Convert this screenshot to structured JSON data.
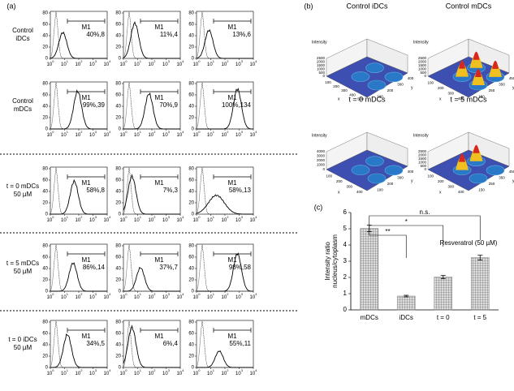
{
  "panel_a": {
    "label": "(a)",
    "gate_label": "M1",
    "x_tick_base": "10",
    "x_tick_exponents": [
      0,
      1,
      2,
      3,
      4
    ],
    "y_ticks": [
      0,
      20,
      40,
      60,
      80
    ],
    "rows": [
      {
        "label_lines": [
          "Control",
          "iDCs"
        ],
        "gates": [
          "40%,8",
          "11%,4",
          "13%,6"
        ]
      },
      {
        "label_lines": [
          "Control",
          "mDCs"
        ],
        "gates": [
          "99%,39",
          "70%,9",
          "100%,134"
        ]
      },
      {
        "label_lines": [
          "t = 0 mDCs",
          "50 µM"
        ],
        "gates": [
          "58%,8",
          "7%,3",
          "58%,13"
        ]
      },
      {
        "label_lines": [
          "t = 5 mDCs",
          "50 µM"
        ],
        "gates": [
          "86%,14",
          "37%,7",
          "98%,58"
        ]
      },
      {
        "label_lines": [
          "t = 0 iDCs",
          "50 µM"
        ],
        "gates": [
          "34%,5",
          "6%,4",
          "55%,11"
        ]
      }
    ]
  },
  "panel_b": {
    "label": "(b)",
    "plots": [
      {
        "title": "Control iDCs",
        "z_label": "Intensity",
        "x_label": "x",
        "y_label": "y",
        "z_ticks": [
          0,
          500,
          1000,
          1500,
          2000,
          2500
        ],
        "x_ticks": [
          100,
          200,
          300,
          400,
          500
        ],
        "y_ticks": [
          100,
          200,
          300,
          400
        ]
      },
      {
        "title": "Control mDCs",
        "z_label": "Intensity",
        "x_label": "x",
        "y_label": "y",
        "z_ticks": [
          0,
          500,
          1000,
          1500,
          2000,
          2500
        ],
        "x_ticks": [
          100,
          200,
          300,
          400
        ],
        "y_ticks": [
          150,
          250,
          350,
          450
        ]
      },
      {
        "title": "t = 0 mDCs",
        "z_label": "Intensity",
        "x_label": "x",
        "y_label": "y",
        "z_ticks": [
          0,
          1000,
          2000,
          3000,
          4000
        ],
        "x_ticks": [
          100,
          200,
          300,
          400
        ],
        "y_ticks": [
          100,
          200,
          300,
          400
        ]
      },
      {
        "title": "t = 5 mDCs",
        "z_label": "Intensity",
        "x_label": "x",
        "y_label": "y",
        "z_ticks": [
          0,
          500,
          1000,
          1500,
          2000,
          2500
        ],
        "x_ticks": [
          100,
          200,
          300,
          400
        ],
        "y_ticks": [
          150,
          250,
          350,
          450
        ]
      }
    ]
  },
  "chart_data": {
    "type": "bar",
    "label": "(c)",
    "ylabel": [
      "Intensity ratio",
      "nucleus/cytoplasm"
    ],
    "categories": [
      "mDCs",
      "iDCs",
      "t = 0",
      "t = 5"
    ],
    "values": [
      5.02,
      0.85,
      2.02,
      3.22
    ],
    "errors": [
      0.2,
      0.05,
      0.1,
      0.15
    ],
    "ylim": [
      0,
      6
    ],
    "yticks": [
      0,
      1,
      2,
      3,
      4,
      5,
      6
    ],
    "color": "#888888",
    "annotations": [
      "n.s.",
      "*",
      "**",
      "Resveratrol (50 µM)"
    ]
  }
}
